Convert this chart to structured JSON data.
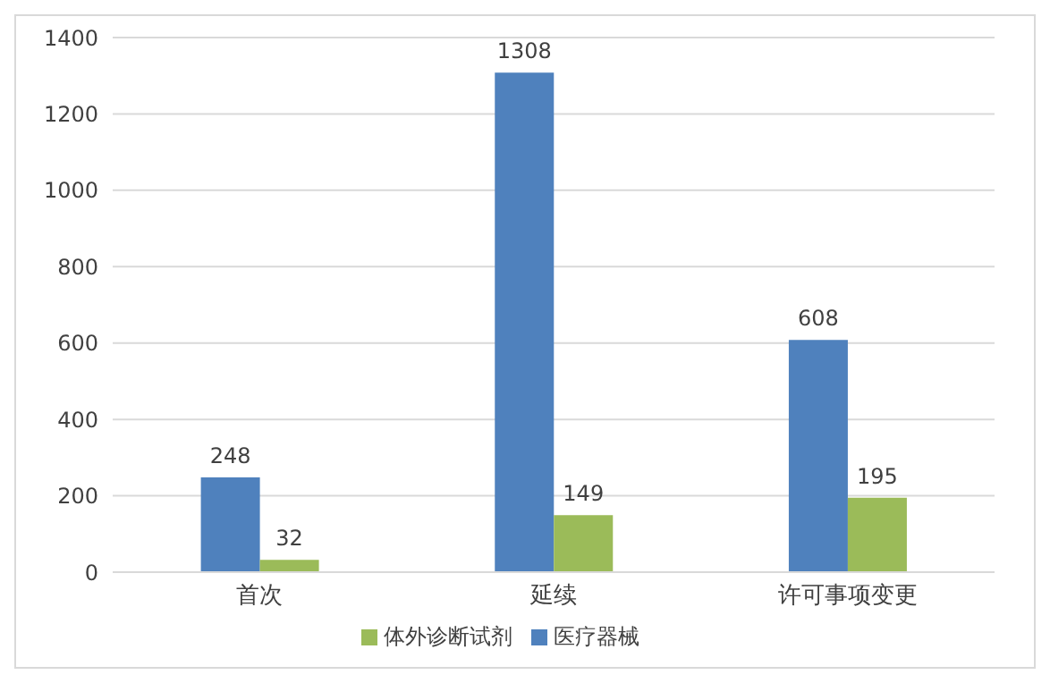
{
  "chart_data": {
    "type": "bar",
    "categories": [
      "首次",
      "延续",
      "许可事项变更"
    ],
    "series": [
      {
        "name": "医疗器械",
        "color": "#4f81bd",
        "values": [
          248,
          1308,
          608
        ]
      },
      {
        "name": "体外诊断试剂",
        "color": "#9bbb59",
        "values": [
          32,
          149,
          195
        ]
      }
    ],
    "ylim": [
      0,
      1400
    ],
    "yticks": [
      0,
      200,
      400,
      600,
      800,
      1000,
      1200,
      1400
    ],
    "grid": "y",
    "legend": "bottom",
    "data_labels": true
  }
}
